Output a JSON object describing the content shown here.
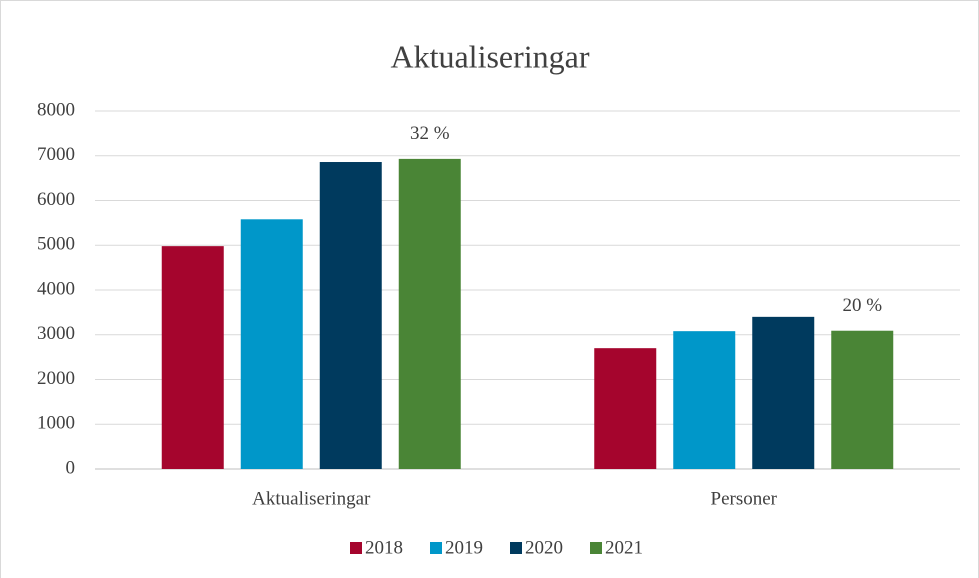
{
  "chart_data": {
    "type": "bar",
    "title": "Aktualiseringar",
    "categories": [
      "Aktualiseringar",
      "Personer"
    ],
    "series": [
      {
        "name": "2018",
        "color": "#a5052d",
        "values": [
          4980,
          2700
        ]
      },
      {
        "name": "2019",
        "color": "#0097c9",
        "values": [
          5580,
          3080
        ]
      },
      {
        "name": "2020",
        "color": "#003a5e",
        "values": [
          6860,
          3400
        ]
      },
      {
        "name": "2021",
        "color": "#4a8536",
        "values": [
          6930,
          3090
        ]
      }
    ],
    "annotations": [
      "32 %",
      "20 %"
    ],
    "ylim": [
      0,
      8000
    ],
    "yticks": [
      0,
      1000,
      2000,
      3000,
      4000,
      5000,
      6000,
      7000,
      8000
    ],
    "grid": true,
    "legend": "bottom"
  }
}
